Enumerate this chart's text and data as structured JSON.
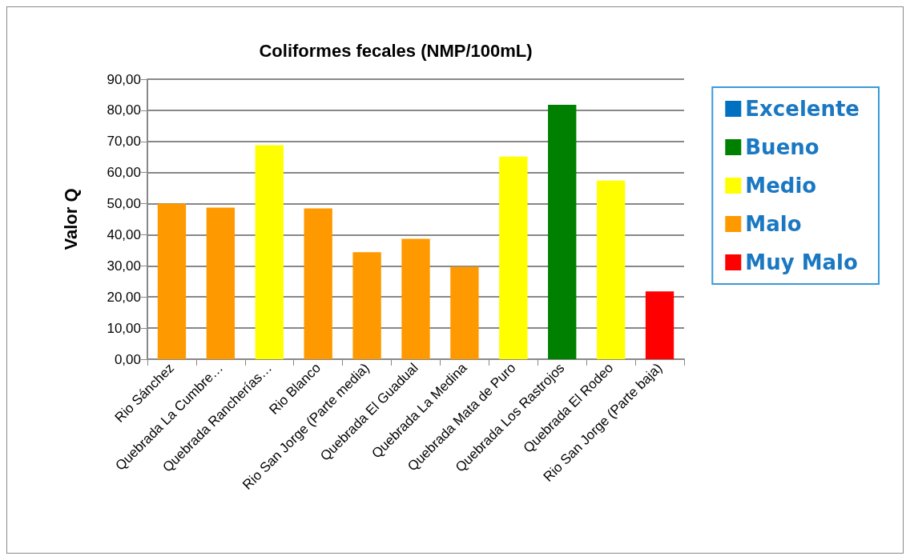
{
  "chart_data": {
    "type": "bar",
    "title": "Coliformes fecales (NMP/100mL)",
    "ylabel": "Valor Q",
    "categories": [
      "Rio Sánchez",
      "Quebrada La Cumbre…",
      "Quebrada Rancherías…",
      "Rio Blanco",
      "Rio San Jorge (Parte media)",
      "Quebrada El Guadual",
      "Quebrada La Medina",
      "Quebrada Mata de Puro",
      "Quebrada Los Rastrojos",
      "Quebrada El Rodeo",
      "Rio San Jorge (Parte baja)"
    ],
    "series": [
      {
        "name": "Excelente",
        "color": "#0070c0",
        "values": [
          null,
          null,
          null,
          null,
          null,
          null,
          null,
          null,
          null,
          null,
          null
        ]
      },
      {
        "name": "Bueno",
        "color": "#008000",
        "values": [
          null,
          null,
          null,
          null,
          null,
          null,
          null,
          null,
          81.8,
          null,
          null
        ]
      },
      {
        "name": "Medio",
        "color": "#ffff00",
        "values": [
          null,
          null,
          68.8,
          null,
          null,
          null,
          null,
          65.1,
          null,
          57.4,
          null
        ]
      },
      {
        "name": "Malo",
        "color": "#ff9900",
        "values": [
          50,
          48.7,
          null,
          48.5,
          34.4,
          38.7,
          29.7,
          null,
          null,
          null,
          null
        ]
      },
      {
        "name": "Muy Malo",
        "color": "#ff0000",
        "values": [
          null,
          null,
          null,
          null,
          null,
          null,
          null,
          null,
          null,
          null,
          21.8
        ]
      }
    ],
    "stacked": true,
    "ylim": [
      0,
      90
    ],
    "yticks": [
      {
        "value": 0,
        "label": "0,00"
      },
      {
        "value": 10,
        "label": "10,00"
      },
      {
        "value": 20,
        "label": "20,00"
      },
      {
        "value": 30,
        "label": "30,00"
      },
      {
        "value": 40,
        "label": "40,00"
      },
      {
        "value": 50,
        "label": "50,00"
      },
      {
        "value": 60,
        "label": "60,00"
      },
      {
        "value": 70,
        "label": "70,00"
      },
      {
        "value": 80,
        "label": "80,00"
      },
      {
        "value": 90,
        "label": "90,00"
      }
    ],
    "grid": "y",
    "legend": "right"
  }
}
